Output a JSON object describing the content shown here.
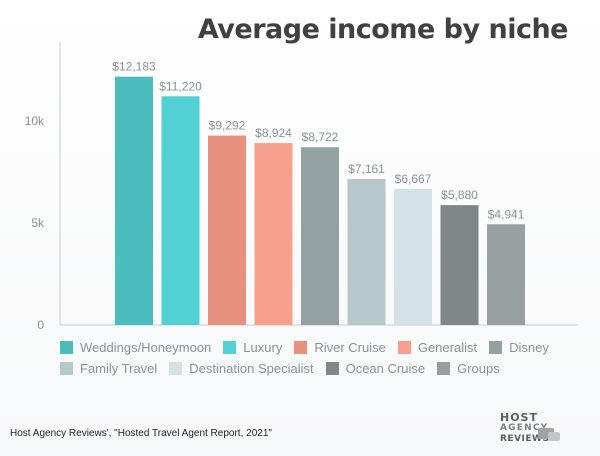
{
  "chart_data": {
    "type": "bar",
    "title": "Average income by niche",
    "categories": [
      "Weddings/Honeymoon",
      "Luxury",
      "River Cruise",
      "Generalist",
      "Disney",
      "Family Travel",
      "Destination Specialist",
      "Ocean Cruise",
      "Groups"
    ],
    "values": [
      12183,
      11220,
      9292,
      8924,
      8722,
      7161,
      6667,
      5880,
      4941
    ],
    "value_labels": [
      "$12,183",
      "$11,220",
      "$9,292",
      "$8,924",
      "$8,722",
      "$7,161",
      "$6,667",
      "$5,880",
      "$4,941"
    ],
    "colors": [
      "#4bbdbf",
      "#52d0d4",
      "#e8917f",
      "#f7a08e",
      "#93a1a3",
      "#b7c8ca",
      "#d2e2e6",
      "#7f8788",
      "#989fa1"
    ],
    "y_ticks": [
      0,
      5000,
      10000
    ],
    "y_tick_labels": [
      "0",
      "5k",
      "10k"
    ],
    "ylim": [
      0,
      13000
    ],
    "xlabel": "",
    "ylabel": "",
    "grid": false,
    "legend_placement": "bottom"
  },
  "source": "Host Agency Reviews', \"Hosted Travel Agent Report, 2021\"",
  "logo": {
    "line1": "HOST",
    "line2": "AGENCY",
    "line3": "REVIEWS"
  }
}
